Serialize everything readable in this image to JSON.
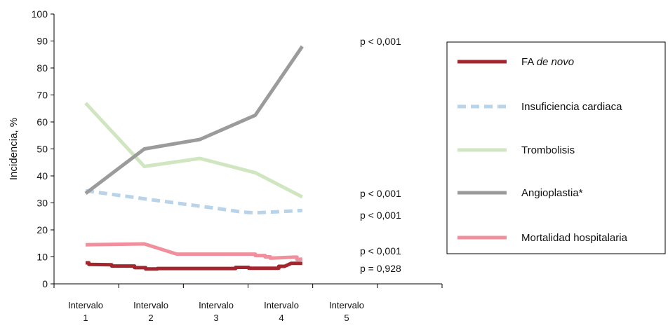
{
  "chart_data": {
    "type": "line",
    "title": "",
    "ylabel": "Incidencia, %",
    "xlabel": "",
    "ylim": [
      0,
      100
    ],
    "yticks": [
      0,
      10,
      20,
      30,
      40,
      50,
      60,
      70,
      80,
      90,
      100
    ],
    "categories": [
      {
        "line1": "Intervalo",
        "line2": "1"
      },
      {
        "line1": "Intervalo",
        "line2": "2"
      },
      {
        "line1": "Intervalo",
        "line2": "3"
      },
      {
        "line1": "Intervalo",
        "line2": "4"
      },
      {
        "line1": "Intervalo",
        "line2": "5"
      }
    ],
    "grid": false,
    "legend_position": "right",
    "series": [
      {
        "name": "FA de novo",
        "name_parts": [
          {
            "text": "FA ",
            "italic": false
          },
          {
            "text": "de novo",
            "italic": true
          }
        ],
        "color": "#a3262f",
        "dash": "solid",
        "p_label": "p = 0,928",
        "points": [
          {
            "x": 1,
            "y": 7.8
          },
          {
            "x": 1.05,
            "y": 7.8
          },
          {
            "x": 1.05,
            "y": 7.2
          },
          {
            "x": 1.4,
            "y": 7.1
          },
          {
            "x": 1.4,
            "y": 6.6
          },
          {
            "x": 1.75,
            "y": 6.6
          },
          {
            "x": 1.75,
            "y": 6.0
          },
          {
            "x": 1.92,
            "y": 6.0
          },
          {
            "x": 1.92,
            "y": 5.5
          },
          {
            "x": 2.1,
            "y": 5.5
          },
          {
            "x": 2.1,
            "y": 5.7
          },
          {
            "x": 3.3,
            "y": 5.7
          },
          {
            "x": 3.3,
            "y": 6.1
          },
          {
            "x": 3.5,
            "y": 6.1
          },
          {
            "x": 3.5,
            "y": 5.8
          },
          {
            "x": 3.96,
            "y": 5.8
          },
          {
            "x": 3.96,
            "y": 6.5
          },
          {
            "x": 4.05,
            "y": 6.5
          },
          {
            "x": 4.15,
            "y": 7.6
          },
          {
            "x": 4.32,
            "y": 7.6
          }
        ]
      },
      {
        "name": "Insuficiencia cardiaca",
        "name_parts": [
          {
            "text": "Insuficiencia cardiaca",
            "italic": false
          }
        ],
        "color": "#b9d3e9",
        "dash": "dashed",
        "p_label": "p < 0,001",
        "points": [
          {
            "x": 1,
            "y": 34.5
          },
          {
            "x": 2,
            "y": 31.2
          },
          {
            "x": 3,
            "y": 28.0
          },
          {
            "x": 3.4,
            "y": 26.6
          },
          {
            "x": 3.6,
            "y": 26.3
          },
          {
            "x": 4.32,
            "y": 27.2
          }
        ]
      },
      {
        "name": "Trombolisis",
        "name_parts": [
          {
            "text": "Trombolisis",
            "italic": false
          }
        ],
        "color": "#cfe6c0",
        "dash": "solid",
        "p_label": "p < 0,001",
        "points": [
          {
            "x": 1,
            "y": 67.0
          },
          {
            "x": 1.9,
            "y": 43.5
          },
          {
            "x": 2.75,
            "y": 46.5
          },
          {
            "x": 3.6,
            "y": 41.2
          },
          {
            "x": 4.32,
            "y": 32.2
          }
        ]
      },
      {
        "name": "Angioplastia*",
        "name_parts": [
          {
            "text": "Angioplastia*",
            "italic": false
          }
        ],
        "color": "#9b9b9b",
        "dash": "solid",
        "p_label": "p < 0,001",
        "points": [
          {
            "x": 1,
            "y": 33.5
          },
          {
            "x": 1.9,
            "y": 50.0
          },
          {
            "x": 2.75,
            "y": 53.5
          },
          {
            "x": 3.6,
            "y": 62.5
          },
          {
            "x": 4.32,
            "y": 88.0
          }
        ]
      },
      {
        "name": "Mortalidad hospitalaria",
        "name_parts": [
          {
            "text": "Mortalidad hospitalaria",
            "italic": false
          }
        ],
        "color": "#f0909e",
        "dash": "solid",
        "p_label": "p < 0,001",
        "points": [
          {
            "x": 1,
            "y": 14.5
          },
          {
            "x": 1.9,
            "y": 14.8
          },
          {
            "x": 2.4,
            "y": 11.0
          },
          {
            "x": 3.6,
            "y": 11.0
          },
          {
            "x": 3.6,
            "y": 10.5
          },
          {
            "x": 3.75,
            "y": 10.5
          },
          {
            "x": 3.75,
            "y": 10.0
          },
          {
            "x": 3.83,
            "y": 10.0
          },
          {
            "x": 3.83,
            "y": 9.5
          },
          {
            "x": 4.2,
            "y": 9.9
          },
          {
            "x": 4.24,
            "y": 9.9
          },
          {
            "x": 4.24,
            "y": 9.0
          },
          {
            "x": 4.32,
            "y": 9.2
          }
        ]
      }
    ],
    "annotations": [
      {
        "text": "p < 0,001",
        "series": "Angioplastia*",
        "y": 88.0
      },
      {
        "text": "p < 0,001",
        "series": "Trombolisis",
        "y": 32.2
      },
      {
        "text": "p < 0,001",
        "series": "Insuficiencia cardiaca",
        "y": 27.2
      },
      {
        "text": "p < 0,001",
        "series": "Mortalidad hospitalaria",
        "y": 9.2
      },
      {
        "text": "p = 0,928",
        "series": "FA de novo",
        "y": 7.6
      }
    ]
  }
}
